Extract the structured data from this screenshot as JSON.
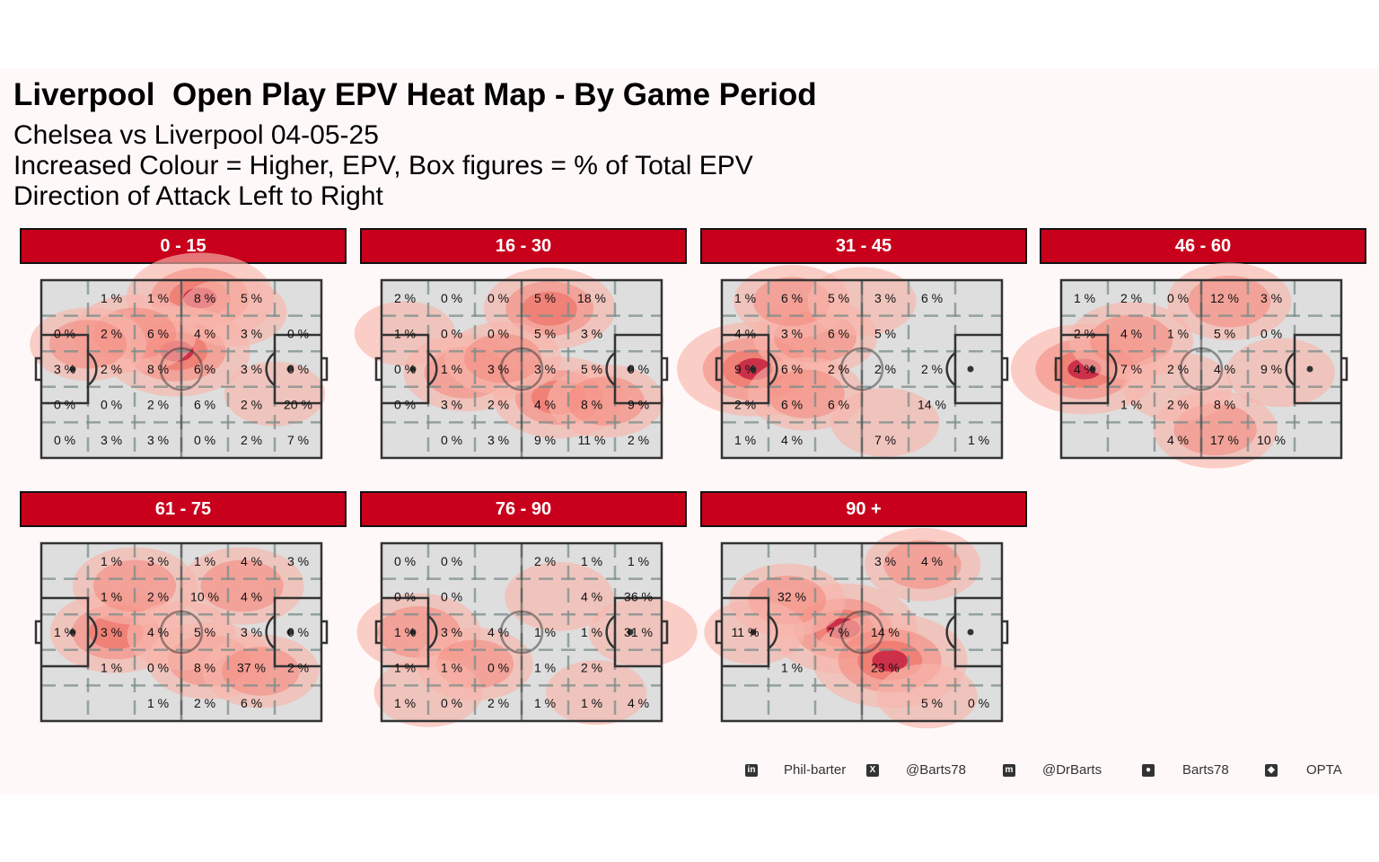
{
  "title": "Liverpool  Open Play EPV Heat Map - By Game Period",
  "subtitle_lines": [
    "Chelsea vs Liverpool 04-05-25",
    "Increased Colour = Higher, EPV, Box figures = % of Total EPV",
    "Direction of Attack Left to Right"
  ],
  "colors": {
    "strip": "#c8001b",
    "pitch": "#dedede",
    "heat_low": "#f7b5ab",
    "heat_mid": "#ee6a5f",
    "heat_high": "#c0163a",
    "background": "#fff8f8"
  },
  "chart_data": {
    "type": "heatmap",
    "grid_rows": 5,
    "grid_cols": 6,
    "facets": [
      {
        "period": "0 - 15",
        "cells": [
          [
            "",
            "1 %",
            "1 %",
            "8 %",
            "5 %",
            ""
          ],
          [
            "0 %",
            "2 %",
            "6 %",
            "4 %",
            "3 %",
            "0 %"
          ],
          [
            "3 %",
            "2 %",
            "8 %",
            "6 %",
            "3 %",
            "0 %"
          ],
          [
            "0 %",
            "0 %",
            "2 %",
            "6 %",
            "2 %",
            "20 %"
          ],
          [
            "0 %",
            "3 %",
            "3 %",
            "0 %",
            "2 %",
            "7 %"
          ]
        ],
        "hotspots": [
          [
            3.4,
            0.5,
            0.9
          ],
          [
            2.9,
            2.0,
            0.9
          ],
          [
            2.0,
            1.5,
            0.6
          ],
          [
            1.0,
            1.8,
            0.5
          ],
          [
            4.1,
            0.9,
            0.4
          ],
          [
            5.0,
            3.2,
            0.3
          ]
        ]
      },
      {
        "period": "16 - 30",
        "cells": [
          [
            "2 %",
            "0 %",
            "0 %",
            "5 %",
            "18 %",
            ""
          ],
          [
            "1 %",
            "0 %",
            "0 %",
            "5 %",
            "3 %",
            ""
          ],
          [
            "0 %",
            "1 %",
            "3 %",
            "3 %",
            "5 %",
            "0 %"
          ],
          [
            "0 %",
            "3 %",
            "2 %",
            "4 %",
            "8 %",
            "9 %"
          ],
          [
            "",
            "0 %",
            "3 %",
            "9 %",
            "11 %",
            "2 %"
          ]
        ],
        "hotspots": [
          [
            3.6,
            0.8,
            0.7
          ],
          [
            3.8,
            3.3,
            0.7
          ],
          [
            1.8,
            2.6,
            0.6
          ],
          [
            2.6,
            2.2,
            0.5
          ],
          [
            4.8,
            3.4,
            0.5
          ],
          [
            0.5,
            1.5,
            0.3
          ]
        ]
      },
      {
        "period": "31 - 45",
        "cells": [
          [
            "1 %",
            "6 %",
            "5 %",
            "3 %",
            "6 %",
            ""
          ],
          [
            "4 %",
            "3 %",
            "6 %",
            "5 %",
            "",
            ""
          ],
          [
            "9 %",
            "6 %",
            "2 %",
            "2 %",
            "2 %",
            ""
          ],
          [
            "2 %",
            "6 %",
            "6 %",
            "",
            "14 %",
            ""
          ],
          [
            "1 %",
            "4 %",
            "",
            "7 %",
            "",
            "1 %"
          ]
        ],
        "hotspots": [
          [
            0.7,
            2.5,
            1.0
          ],
          [
            2.0,
            1.6,
            0.6
          ],
          [
            1.5,
            0.6,
            0.5
          ],
          [
            3.0,
            0.6,
            0.4
          ],
          [
            1.8,
            3.2,
            0.5
          ],
          [
            3.5,
            4.0,
            0.4
          ]
        ]
      },
      {
        "period": "46 - 60",
        "cells": [
          [
            "1 %",
            "2 %",
            "0 %",
            "12 %",
            "3 %",
            ""
          ],
          [
            "2 %",
            "4 %",
            "1 %",
            "5 %",
            "0 %",
            ""
          ],
          [
            "4 %",
            "7 %",
            "2 %",
            "4 %",
            "9 %",
            ""
          ],
          [
            "",
            "1 %",
            "2 %",
            "8 %",
            "",
            ""
          ],
          [
            "",
            "",
            "4 %",
            "17 %",
            "10 %",
            ""
          ]
        ],
        "hotspots": [
          [
            0.5,
            2.5,
            0.9
          ],
          [
            1.5,
            1.7,
            0.6
          ],
          [
            3.6,
            0.6,
            0.6
          ],
          [
            3.3,
            4.2,
            0.6
          ],
          [
            2.5,
            3.0,
            0.4
          ],
          [
            4.7,
            2.6,
            0.4
          ]
        ]
      },
      {
        "period": "61 - 75",
        "cells": [
          [
            "",
            "1 %",
            "3 %",
            "1 %",
            "4 %",
            "3 %"
          ],
          [
            "",
            "1 %",
            "2 %",
            "10 %",
            "4 %",
            ""
          ],
          [
            "1 %",
            "3 %",
            "4 %",
            "5 %",
            "3 %",
            "0 %"
          ],
          [
            "",
            "1 %",
            "0 %",
            "8 %",
            "37 %",
            "2 %"
          ],
          [
            "",
            "",
            "1 %",
            "2 %",
            "6 %",
            ""
          ]
        ],
        "hotspots": [
          [
            1.6,
            2.5,
            0.7
          ],
          [
            2.0,
            1.2,
            0.6
          ],
          [
            4.3,
            1.2,
            0.6
          ],
          [
            3.6,
            3.3,
            0.6
          ],
          [
            4.7,
            3.6,
            0.5
          ],
          [
            3.0,
            2.6,
            0.4
          ]
        ]
      },
      {
        "period": "76 - 90",
        "cells": [
          [
            "0 %",
            "0 %",
            "",
            "2 %",
            "1 %",
            "1 %"
          ],
          [
            "0 %",
            "0 %",
            "",
            "",
            "4 %",
            "36 %"
          ],
          [
            "1 %",
            "3 %",
            "4 %",
            "1 %",
            "1 %",
            "31 %"
          ],
          [
            "1 %",
            "1 %",
            "0 %",
            "1 %",
            "2 %",
            ""
          ],
          [
            "1 %",
            "0 %",
            "2 %",
            "1 %",
            "1 %",
            "4 %"
          ]
        ],
        "hotspots": [
          [
            0.8,
            2.5,
            0.6
          ],
          [
            2.0,
            3.4,
            0.5
          ],
          [
            3.8,
            1.5,
            0.4
          ],
          [
            5.6,
            2.5,
            0.4
          ],
          [
            1.0,
            4.2,
            0.4
          ],
          [
            4.6,
            4.2,
            0.3
          ]
        ]
      },
      {
        "period": "90 +",
        "cells": [
          [
            "",
            "",
            "",
            "3 %",
            "4 %",
            ""
          ],
          [
            "",
            "32 %",
            "",
            "",
            "",
            ""
          ],
          [
            "11 %",
            "",
            "7 %",
            "14 %",
            "",
            ""
          ],
          [
            "",
            "1 %",
            "",
            "23 %",
            "",
            ""
          ],
          [
            "",
            "",
            "",
            "",
            "5 %",
            "0 %"
          ]
        ],
        "hotspots": [
          [
            2.6,
            2.4,
            0.9
          ],
          [
            3.6,
            3.3,
            1.0
          ],
          [
            1.4,
            1.6,
            0.5
          ],
          [
            4.3,
            0.6,
            0.5
          ],
          [
            0.7,
            2.5,
            0.3
          ],
          [
            4.4,
            4.3,
            0.3
          ]
        ]
      }
    ]
  },
  "footer": [
    {
      "icon": "linkedin-icon",
      "glyph": "in",
      "label": "Phil-barter"
    },
    {
      "icon": "x-icon",
      "glyph": "X",
      "label": "@Barts78"
    },
    {
      "icon": "mastodon-icon",
      "glyph": "m",
      "label": "@DrBarts"
    },
    {
      "icon": "github-icon",
      "glyph": "●",
      "label": "Barts78"
    },
    {
      "icon": "dropbox-icon",
      "glyph": "◆",
      "label": "OPTA"
    }
  ]
}
